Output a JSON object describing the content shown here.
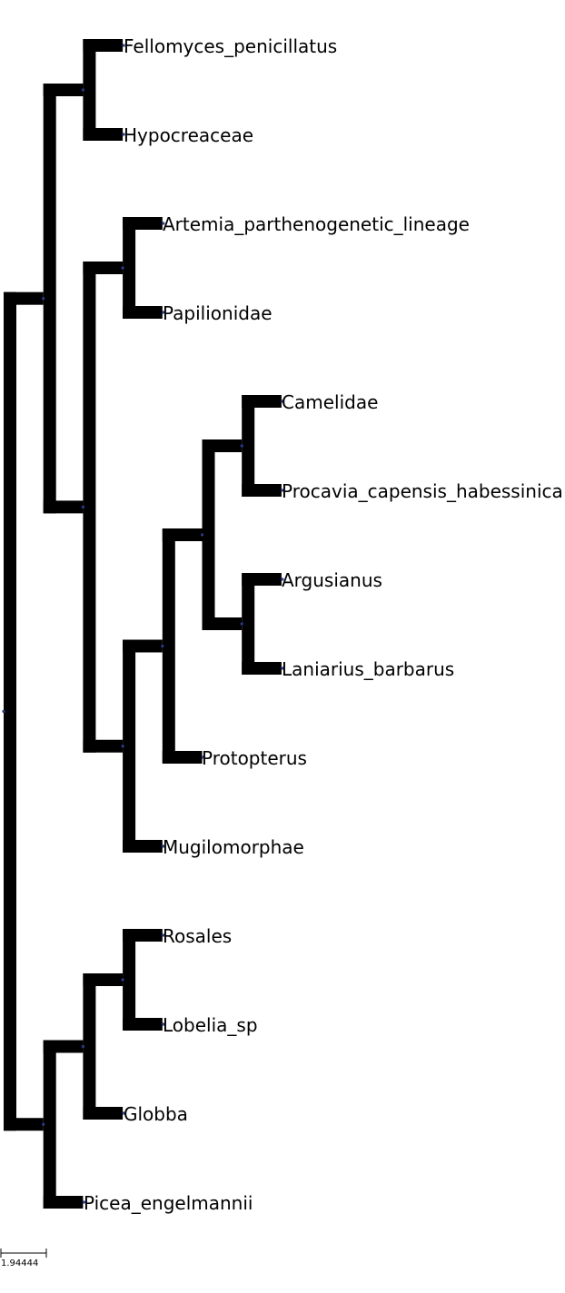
{
  "tree": {
    "taxa": [
      "Fellomyces_penicillatus",
      "Hypocreaceae",
      "Artemia_parthenogenetic_lineage",
      "Papilionidae",
      "Camelidae",
      "Procavia_capensis_habessinica",
      "Argusianus",
      "Laniarius_barbarus",
      "Protopterus",
      "Mugilomorphae",
      "Rosales",
      "Lobelia_sp",
      "Globba",
      "Picea_engelmannii"
    ],
    "newick": "(((Fellomyces_penicillatus,Hypocreaceae),((Artemia_parthenogenetic_lineage,Papilionidae),((((Camelidae,Procavia_capensis_habessinica),(Argusianus,Laniarius_barbarus)),Protopterus),Mugilomorphae))),(((Rosales,Lobelia_sp),Globba),Picea_engelmannii));",
    "branch_color": "#000000",
    "node_marker_color": "#2b3a8c"
  },
  "scale_bar": {
    "label": "1.94444"
  }
}
